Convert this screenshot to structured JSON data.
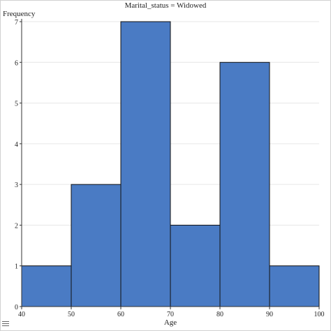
{
  "chart_data": {
    "type": "bar",
    "title": "Marital_status = Widowed",
    "xlabel": "Age",
    "ylabel": "Frequency",
    "bins": [
      {
        "x0": 40,
        "x1": 50,
        "value": 1
      },
      {
        "x0": 50,
        "x1": 60,
        "value": 3
      },
      {
        "x0": 60,
        "x1": 70,
        "value": 7
      },
      {
        "x0": 70,
        "x1": 80,
        "value": 2
      },
      {
        "x0": 80,
        "x1": 90,
        "value": 6
      },
      {
        "x0": 90,
        "x1": 100,
        "value": 1
      }
    ],
    "xlim": [
      40,
      100
    ],
    "ylim": [
      0,
      7
    ],
    "x_ticks": [
      "40",
      "50",
      "60",
      "70",
      "80",
      "90",
      "100"
    ],
    "y_ticks": [
      "0",
      "1",
      "2",
      "3",
      "4",
      "5",
      "6",
      "7"
    ],
    "grid": true,
    "colors": {
      "bar": "#4a7bc4",
      "bar_edge": "#111111",
      "grid": "#e6e6e6"
    }
  },
  "ui": {
    "menu_icon": "hamburger-menu-icon"
  }
}
